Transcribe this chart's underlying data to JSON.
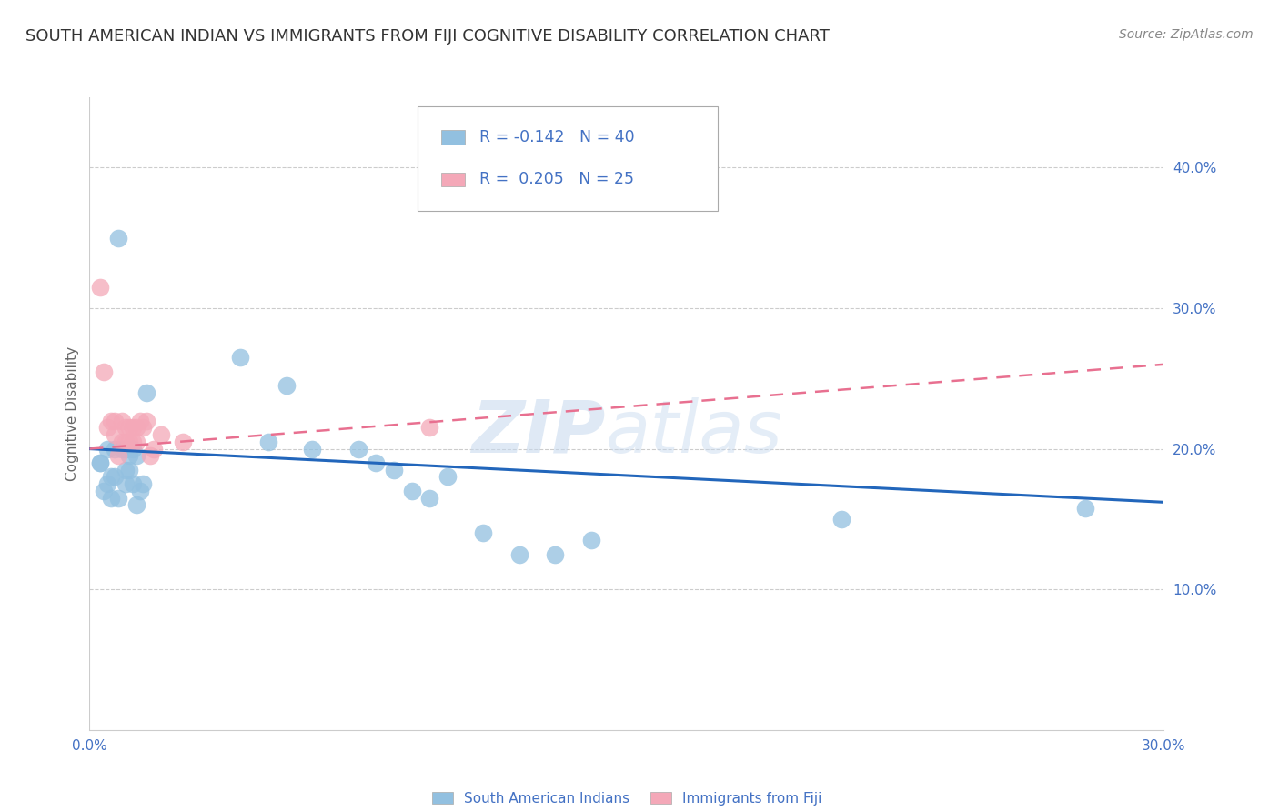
{
  "title": "SOUTH AMERICAN INDIAN VS IMMIGRANTS FROM FIJI COGNITIVE DISABILITY CORRELATION CHART",
  "source": "Source: ZipAtlas.com",
  "ylabel_label": "Cognitive Disability",
  "xlim": [
    0.0,
    0.3
  ],
  "ylim": [
    0.0,
    0.45
  ],
  "blue_color": "#92C0E0",
  "pink_color": "#F4A8B8",
  "line_blue": "#2266BB",
  "line_pink": "#E87090",
  "legend_R1": "-0.142",
  "legend_N1": "40",
  "legend_R2": "0.205",
  "legend_N2": "25",
  "label1": "South American Indians",
  "label2": "Immigrants from Fiji",
  "watermark": "ZIPatlas",
  "blue_points_x": [
    0.003,
    0.008,
    0.003,
    0.004,
    0.005,
    0.006,
    0.005,
    0.006,
    0.007,
    0.007,
    0.008,
    0.009,
    0.01,
    0.01,
    0.01,
    0.011,
    0.011,
    0.012,
    0.012,
    0.013,
    0.013,
    0.014,
    0.015,
    0.016,
    0.042,
    0.05,
    0.055,
    0.062,
    0.075,
    0.08,
    0.085,
    0.09,
    0.095,
    0.1,
    0.11,
    0.12,
    0.13,
    0.14,
    0.21,
    0.278
  ],
  "blue_points_y": [
    0.19,
    0.35,
    0.19,
    0.17,
    0.2,
    0.18,
    0.175,
    0.165,
    0.2,
    0.18,
    0.165,
    0.2,
    0.2,
    0.185,
    0.175,
    0.195,
    0.185,
    0.2,
    0.175,
    0.195,
    0.16,
    0.17,
    0.175,
    0.24,
    0.265,
    0.205,
    0.245,
    0.2,
    0.2,
    0.19,
    0.185,
    0.17,
    0.165,
    0.18,
    0.14,
    0.125,
    0.125,
    0.135,
    0.15,
    0.158
  ],
  "pink_points_x": [
    0.003,
    0.004,
    0.005,
    0.006,
    0.007,
    0.007,
    0.008,
    0.009,
    0.009,
    0.01,
    0.01,
    0.011,
    0.011,
    0.012,
    0.012,
    0.013,
    0.013,
    0.014,
    0.015,
    0.016,
    0.017,
    0.018,
    0.02,
    0.026,
    0.095
  ],
  "pink_points_y": [
    0.315,
    0.255,
    0.215,
    0.22,
    0.22,
    0.21,
    0.195,
    0.22,
    0.205,
    0.215,
    0.205,
    0.215,
    0.205,
    0.215,
    0.205,
    0.215,
    0.205,
    0.22,
    0.215,
    0.22,
    0.195,
    0.2,
    0.21,
    0.205,
    0.215
  ],
  "blue_trendline_x": [
    0.0,
    0.3
  ],
  "blue_trendline_y": [
    0.2,
    0.162
  ],
  "pink_trendline_x": [
    0.0,
    0.3
  ],
  "pink_trendline_y": [
    0.2,
    0.26
  ],
  "bg_color": "#FFFFFF",
  "grid_color": "#CCCCCC",
  "title_color": "#333333",
  "axis_color": "#4472C4",
  "title_fontsize": 13,
  "source_fontsize": 10
}
